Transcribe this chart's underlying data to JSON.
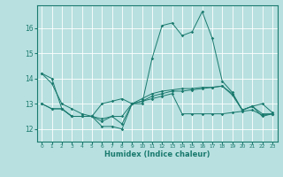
{
  "title": "",
  "xlabel": "Humidex (Indice chaleur)",
  "background_color": "#b8e0e0",
  "grid_color": "#d0ecec",
  "line_color": "#1a7a6e",
  "xlim": [
    -0.5,
    23.5
  ],
  "ylim": [
    11.5,
    16.9
  ],
  "yticks": [
    12,
    13,
    14,
    15,
    16
  ],
  "xticks": [
    0,
    1,
    2,
    3,
    4,
    5,
    6,
    7,
    8,
    9,
    10,
    11,
    12,
    13,
    14,
    15,
    16,
    17,
    18,
    19,
    20,
    21,
    22,
    23
  ],
  "line1_y": [
    14.2,
    14.0,
    12.8,
    12.5,
    12.5,
    12.5,
    12.1,
    12.1,
    12.0,
    13.0,
    13.0,
    14.8,
    16.1,
    16.2,
    15.7,
    15.85,
    16.65,
    15.6,
    13.9,
    13.45,
    12.75,
    12.9,
    12.5,
    12.6
  ],
  "line2_y": [
    13.0,
    12.8,
    12.8,
    12.5,
    12.5,
    12.5,
    12.4,
    12.5,
    12.2,
    13.0,
    13.1,
    13.2,
    13.3,
    13.4,
    12.6,
    12.6,
    12.6,
    12.6,
    12.6,
    12.65,
    12.7,
    12.75,
    12.55,
    12.6
  ],
  "line3_y": [
    14.2,
    13.8,
    13.0,
    12.8,
    12.6,
    12.5,
    13.0,
    13.1,
    13.2,
    13.0,
    13.1,
    13.3,
    13.4,
    13.5,
    13.5,
    13.55,
    13.6,
    13.65,
    13.7,
    13.4,
    12.75,
    12.9,
    13.0,
    12.65
  ],
  "line4_y": [
    13.0,
    12.8,
    12.8,
    12.5,
    12.5,
    12.5,
    12.3,
    12.5,
    12.5,
    13.0,
    13.2,
    13.4,
    13.5,
    13.55,
    13.6,
    13.6,
    13.65,
    13.65,
    13.7,
    13.35,
    12.75,
    12.9,
    12.6,
    12.6
  ]
}
